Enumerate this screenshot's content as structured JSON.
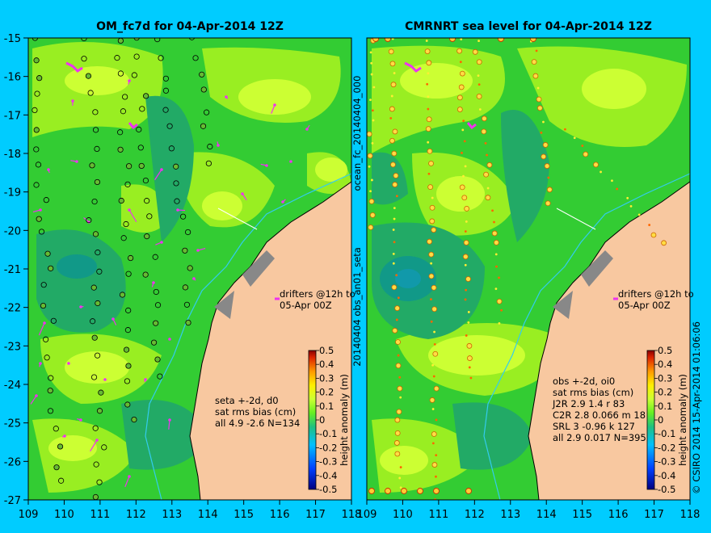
{
  "left_panel": {
    "title": "OM_fc7d for 04-Apr-2014 12Z",
    "drifters_line1": "drifters @12h to",
    "drifters_line2": "05-Apr 00Z",
    "stats_line1": "seta +-2d, d0",
    "stats_line2": "sat rms bias (cm)",
    "stats_line3": "all 4.9 -2.6 N=134"
  },
  "right_panel": {
    "title": "CMRNRT sea level  for 04-Apr-2014 12Z",
    "drifters_line1": "drifters @12h to",
    "drifters_line2": "05-Apr 00Z",
    "stats_line1": "obs +-2d, oi0",
    "stats_line2": "sat rms bias (cm)",
    "stats_rows": [
      "J2R   2.9  1.4  r 83",
      "C2R   2.8  0.066 m 18",
      "SRL    3  -0.96  k 127",
      "all   2.9  0.017 N=395"
    ]
  },
  "middle_vertical_label": "20140404 obs_an01_seta",
  "middle_vertical_label2": "ocean_fc_20140404_000",
  "right_vertical_label": "© CSIRO 2014  15-Apr-2014 01:06:06",
  "colorbar": {
    "label": "height anomaly (m)",
    "ticks": [
      "0.5",
      "0.4",
      "0.3",
      "0.2",
      "0.1",
      "0",
      "-0.1",
      "-0.2",
      "-0.3",
      "-0.4",
      "-0.5"
    ]
  },
  "axes": {
    "lat_ticks": [
      "-15",
      "-16",
      "-17",
      "-18",
      "-19",
      "-20",
      "-21",
      "-22",
      "-23",
      "-24",
      "-25",
      "-26",
      "-27"
    ],
    "lon_ticks": [
      "109",
      "110",
      "111",
      "112",
      "113",
      "114",
      "115",
      "116",
      "117",
      "118"
    ]
  },
  "colors": {
    "background": "#00ccff",
    "land": "#f8c8a0",
    "sea_base": "#33cc33",
    "sea_high": "#ccff33",
    "sea_low": "#22aa88",
    "drifters": "#ee33ee"
  }
}
